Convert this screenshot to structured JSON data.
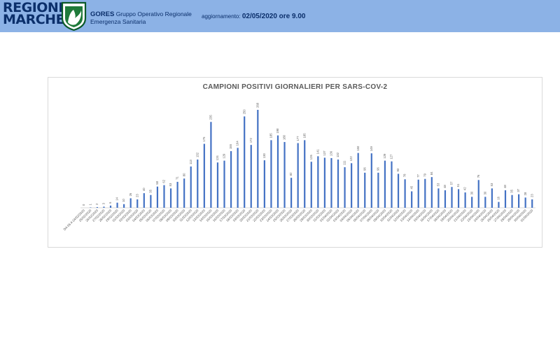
{
  "header": {
    "brand_line1": "REGIONE",
    "brand_line2": "MARCHE",
    "org_short": "GORES",
    "org_line1": "Gruppo Operativo Regionale",
    "org_line2": "Emergenza Sanitaria",
    "update_label": "aggiornamento:",
    "update_value": "02/05/2020 ore 9.00"
  },
  "colors": {
    "header_bg": "#8cb2e6",
    "brand_text": "#0b2f6b",
    "bar": "#4472c4"
  },
  "chart_data": {
    "type": "bar",
    "title": "CAMPIONI POSITIVI GIORNALIERI PER SARS-COV-2",
    "xlabel": "",
    "ylabel": "",
    "grid": false,
    "legend": "none",
    "categories": [
      "DA 06 A 24/02/2020",
      "25/02/2020",
      "26/02/2020",
      "27/02/2020",
      "28/02/2020",
      "29/02/2020",
      "01/03/2020",
      "02/03/2020",
      "03/03/2020",
      "04/03/2020",
      "05/03/2020",
      "06/03/2020",
      "07/03/2020",
      "08/03/2020",
      "09/03/2020",
      "10/03/2020",
      "11/03/2020",
      "12/03/2020",
      "13/03/2020",
      "14/03/2020",
      "15/03/2020",
      "16/03/2020",
      "17/03/2020",
      "18/03/2020",
      "19/03/2020",
      "20/03/2020",
      "21/03/2020",
      "22/03/2020",
      "23/03/2020",
      "24/03/2020",
      "25/03/2020",
      "26/03/2020",
      "27/03/2020",
      "28/03/2020",
      "29/03/2020",
      "30/03/2020",
      "31/03/2020",
      "01/04/2020",
      "02/04/2020",
      "03/04/2020",
      "04/04/2020",
      "05/04/2020",
      "06/04/2020",
      "07/04/2020",
      "08/04/2020",
      "09/04/2020",
      "10/04/2020",
      "11/04/2020",
      "12/04/2020",
      "13/04/2020",
      "14/04/2020",
      "15/04/2020",
      "16/04/2020",
      "17/04/2020",
      "18/04/2020",
      "19/04/2020",
      "20/04/2020",
      "21/04/2020",
      "22/04/2020",
      "23/04/2020",
      "24/04/2020",
      "25/04/2020",
      "26/04/2020",
      "27/04/2020",
      "28/04/2020",
      "29/04/2020",
      "30/04/2020",
      "01/05/2020"
    ],
    "values": [
      0,
      1,
      2,
      3,
      6,
      14,
      10,
      26,
      23,
      40,
      35,
      58,
      62,
      53,
      71,
      80,
      113,
      132,
      175,
      235,
      124,
      129,
      155,
      164,
      250,
      172,
      268,
      130,
      185,
      198,
      180,
      82,
      177,
      185,
      126,
      141,
      137,
      136,
      132,
      111,
      122,
      150,
      96,
      149,
      96,
      129,
      127,
      93,
      78,
      45,
      77,
      79,
      84,
      53,
      48,
      57,
      51,
      42,
      30,
      76,
      30,
      53,
      16,
      48,
      35,
      37,
      28,
      23
    ]
  }
}
